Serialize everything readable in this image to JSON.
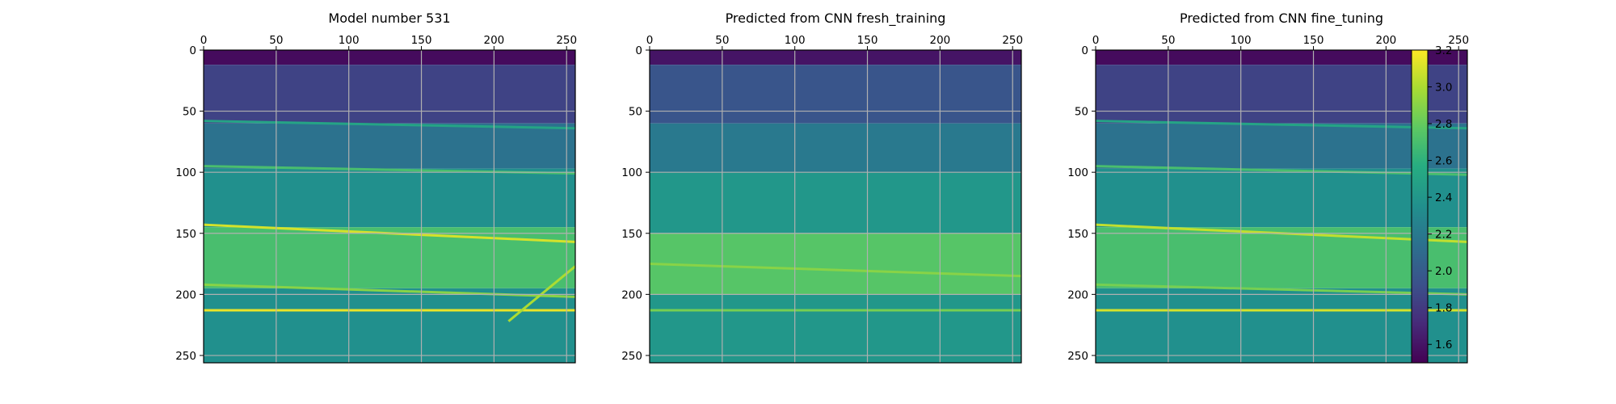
{
  "figure": {
    "background": "#ffffff",
    "colormap": "viridis"
  },
  "chart_data": [
    {
      "type": "heatmap",
      "title": "Model number 531",
      "xlim": [
        0,
        256
      ],
      "ylim": [
        256,
        0
      ],
      "xticks": [
        "0",
        "50",
        "100",
        "150",
        "200",
        "250"
      ],
      "yticks": [
        "0",
        "50",
        "100",
        "150",
        "200",
        "250"
      ],
      "grid": true,
      "layers": [
        {
          "depth": [
            0,
            12
          ],
          "value": 1.55
        },
        {
          "depth": [
            12,
            60
          ],
          "value": 1.85
        },
        {
          "depth": [
            60,
            97
          ],
          "value": 2.15
        },
        {
          "depth": [
            97,
            145
          ],
          "value": 2.35
        },
        {
          "depth": [
            145,
            195
          ],
          "value": 2.7
        },
        {
          "depth": [
            195,
            256
          ],
          "value": 2.35
        }
      ],
      "reflectors": [
        {
          "x": [
            0,
            256
          ],
          "y": [
            58,
            64
          ],
          "value": 2.5
        },
        {
          "x": [
            0,
            256
          ],
          "y": [
            95,
            101
          ],
          "value": 2.7
        },
        {
          "x": [
            0,
            256
          ],
          "y": [
            143,
            157
          ],
          "value": 3.1
        },
        {
          "x": [
            0,
            256
          ],
          "y": [
            192,
            202
          ],
          "value": 2.9
        },
        {
          "x": [
            0,
            256
          ],
          "y": [
            213,
            213
          ],
          "value": 3.15
        },
        {
          "x": [
            210,
            256
          ],
          "y": [
            222,
            177
          ],
          "value": 3.0
        }
      ]
    },
    {
      "type": "heatmap",
      "title": "Predicted from CNN fresh_training",
      "xlim": [
        0,
        256
      ],
      "ylim": [
        256,
        0
      ],
      "xticks": [
        "0",
        "50",
        "100",
        "150",
        "200",
        "250"
      ],
      "yticks": [
        "0",
        "50",
        "100",
        "150",
        "200",
        "250"
      ],
      "grid": true,
      "layers": [
        {
          "depth": [
            0,
            12
          ],
          "value": 1.6
        },
        {
          "depth": [
            12,
            60
          ],
          "value": 1.95
        },
        {
          "depth": [
            60,
            100
          ],
          "value": 2.2
        },
        {
          "depth": [
            100,
            150
          ],
          "value": 2.4
        },
        {
          "depth": [
            150,
            200
          ],
          "value": 2.75
        },
        {
          "depth": [
            200,
            256
          ],
          "value": 2.4
        }
      ],
      "reflectors": [
        {
          "x": [
            0,
            256
          ],
          "y": [
            175,
            185
          ],
          "value": 2.9
        },
        {
          "x": [
            0,
            256
          ],
          "y": [
            213,
            213
          ],
          "value": 2.85
        }
      ]
    },
    {
      "type": "heatmap",
      "title": "Predicted from CNN fine_tuning",
      "xlim": [
        0,
        256
      ],
      "ylim": [
        256,
        0
      ],
      "xticks": [
        "0",
        "50",
        "100",
        "150",
        "200",
        "250"
      ],
      "yticks": [
        "0",
        "50",
        "100",
        "150",
        "200",
        "250"
      ],
      "grid": true,
      "layers": [
        {
          "depth": [
            0,
            12
          ],
          "value": 1.55
        },
        {
          "depth": [
            12,
            60
          ],
          "value": 1.85
        },
        {
          "depth": [
            60,
            97
          ],
          "value": 2.15
        },
        {
          "depth": [
            97,
            145
          ],
          "value": 2.35
        },
        {
          "depth": [
            145,
            195
          ],
          "value": 2.7
        },
        {
          "depth": [
            195,
            256
          ],
          "value": 2.35
        }
      ],
      "reflectors": [
        {
          "x": [
            0,
            256
          ],
          "y": [
            58,
            64
          ],
          "value": 2.5
        },
        {
          "x": [
            0,
            256
          ],
          "y": [
            95,
            102
          ],
          "value": 2.7
        },
        {
          "x": [
            0,
            256
          ],
          "y": [
            143,
            157
          ],
          "value": 3.05
        },
        {
          "x": [
            0,
            256
          ],
          "y": [
            192,
            200
          ],
          "value": 2.85
        },
        {
          "x": [
            0,
            256
          ],
          "y": [
            213,
            213
          ],
          "value": 3.1
        }
      ]
    }
  ],
  "colorbar": {
    "range": [
      1.5,
      3.2
    ],
    "ticks": [
      "1.6",
      "1.8",
      "2.0",
      "2.2",
      "2.4",
      "2.6",
      "2.8",
      "3.0",
      "3.2"
    ]
  }
}
